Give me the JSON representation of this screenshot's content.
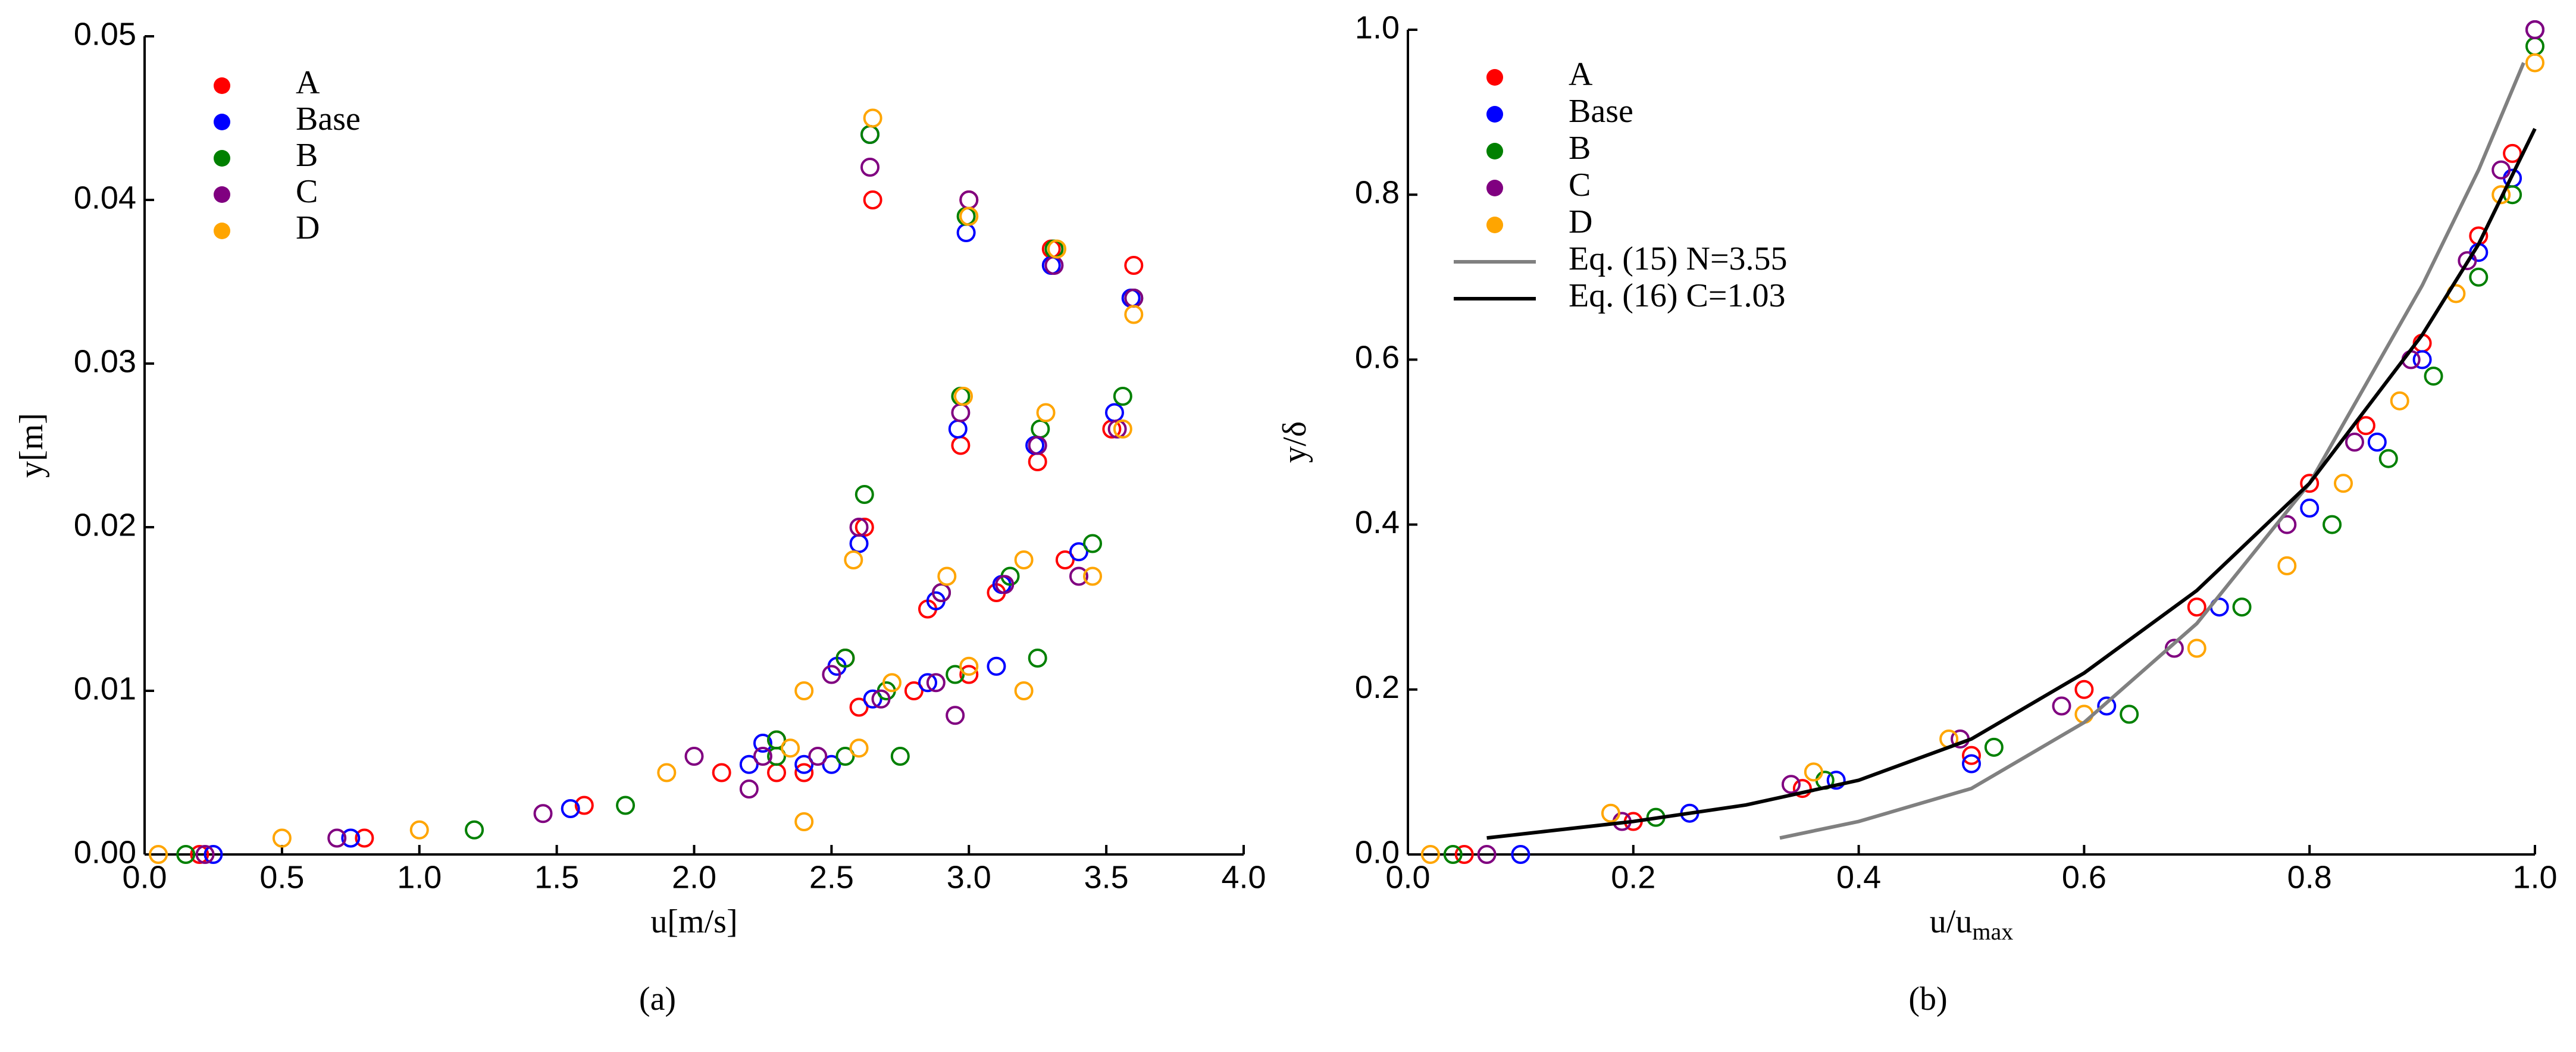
{
  "chart_data": [
    {
      "type": "scatter",
      "label": "(a)",
      "xlabel": "u[m/s]",
      "ylabel": "y[m]",
      "xlim": [
        0,
        4
      ],
      "ylim": [
        0,
        0.05
      ],
      "xticks": [
        {
          "value": 0,
          "label": "0.0"
        },
        {
          "value": 0.5,
          "label": "0.5"
        },
        {
          "value": 1,
          "label": "1.0"
        },
        {
          "value": 1.5,
          "label": "1.5"
        },
        {
          "value": 2,
          "label": "2.0"
        },
        {
          "value": 2.5,
          "label": "2.5"
        },
        {
          "value": 3,
          "label": "3.0"
        },
        {
          "value": 3.5,
          "label": "3.5"
        },
        {
          "value": 4,
          "label": "4.0"
        }
      ],
      "yticks": [
        {
          "value": 0,
          "label": "0.00"
        },
        {
          "value": 0.01,
          "label": "0.01"
        },
        {
          "value": 0.02,
          "label": "0.02"
        },
        {
          "value": 0.03,
          "label": "0.03"
        },
        {
          "value": 0.04,
          "label": "0.04"
        },
        {
          "value": 0.05,
          "label": "0.05"
        }
      ],
      "legend": "upper left",
      "series": [
        {
          "name": "A",
          "color": "#ff0000",
          "x": [
            0.2,
            0.8,
            1.6,
            2.3,
            2.55,
            2.62,
            2.65,
            2.1,
            2.6,
            2.85,
            2.97,
            3.0,
            2.3,
            2.8,
            3.1,
            3.25,
            3.3,
            2.4,
            3.0,
            3.35,
            3.52,
            3.6
          ],
          "values": [
            0,
            0.001,
            0.003,
            0.007,
            0.012,
            0.02,
            0.04,
            0.005,
            0.009,
            0.015,
            0.025,
            0.04,
            0.005,
            0.01,
            0.016,
            0.024,
            0.037,
            0.005,
            0.011,
            0.018,
            0.026,
            0.036
          ]
        },
        {
          "name": "Base",
          "color": "#0000ff",
          "x": [
            0.25,
            0.75,
            1.55,
            2.25,
            2.52,
            2.6,
            2.64,
            2.2,
            2.65,
            2.88,
            2.96,
            2.99,
            2.4,
            2.85,
            3.12,
            3.24,
            3.3,
            2.5,
            3.1,
            3.4,
            3.53,
            3.59
          ],
          "values": [
            0,
            0.001,
            0.0028,
            0.0068,
            0.0115,
            0.019,
            0.044,
            0.0055,
            0.0095,
            0.0155,
            0.026,
            0.038,
            0.0055,
            0.0105,
            0.0165,
            0.025,
            0.036,
            0.0055,
            0.0115,
            0.0185,
            0.027,
            0.034
          ]
        },
        {
          "name": "B",
          "color": "#008000",
          "x": [
            0.15,
            1.2,
            1.75,
            2.3,
            2.55,
            2.62,
            2.64,
            2.3,
            2.7,
            2.9,
            2.97,
            2.99,
            2.55,
            2.95,
            3.15,
            3.26,
            3.31,
            2.75,
            3.25,
            3.45,
            3.56,
            3.6
          ],
          "values": [
            0,
            0.0015,
            0.003,
            0.007,
            0.012,
            0.022,
            0.044,
            0.006,
            0.01,
            0.016,
            0.028,
            0.039,
            0.006,
            0.011,
            0.017,
            0.026,
            0.037,
            0.006,
            0.012,
            0.019,
            0.028,
            0.034
          ]
        },
        {
          "name": "C",
          "color": "#800080",
          "x": [
            0.22,
            0.7,
            1.45,
            2.0,
            2.5,
            2.6,
            2.64,
            2.25,
            2.68,
            2.9,
            2.97,
            3.0,
            2.45,
            2.88,
            3.13,
            3.25,
            3.31,
            2.2,
            2.95,
            3.4,
            3.54,
            3.6
          ],
          "values": [
            0,
            0.001,
            0.0025,
            0.006,
            0.011,
            0.02,
            0.042,
            0.006,
            0.0095,
            0.016,
            0.027,
            0.04,
            0.006,
            0.0105,
            0.0165,
            0.025,
            0.036,
            0.004,
            0.0085,
            0.017,
            0.026,
            0.034
          ]
        },
        {
          "name": "D",
          "color": "#ffa500",
          "x": [
            0.05,
            0.5,
            1.0,
            1.9,
            2.4,
            2.58,
            2.65,
            2.35,
            2.72,
            2.92,
            2.98,
            3.0,
            2.6,
            3.0,
            3.2,
            3.28,
            3.32,
            2.4,
            3.2,
            3.45,
            3.56,
            3.6
          ],
          "values": [
            0,
            0.001,
            0.0015,
            0.005,
            0.01,
            0.018,
            0.045,
            0.0065,
            0.0105,
            0.017,
            0.028,
            0.039,
            0.0065,
            0.0115,
            0.018,
            0.027,
            0.037,
            0.002,
            0.01,
            0.017,
            0.026,
            0.033
          ]
        }
      ]
    },
    {
      "type": "scatter",
      "label": "(b)",
      "xlabel": "u/u",
      "xlabel_sub": "max",
      "ylabel": "y/δ",
      "xlim": [
        0,
        1
      ],
      "ylim": [
        0,
        1
      ],
      "xticks": [
        {
          "value": 0,
          "label": "0.0"
        },
        {
          "value": 0.2,
          "label": "0.2"
        },
        {
          "value": 0.4,
          "label": "0.4"
        },
        {
          "value": 0.6,
          "label": "0.6"
        },
        {
          "value": 0.8,
          "label": "0.8"
        },
        {
          "value": 1,
          "label": "1.0"
        }
      ],
      "yticks": [
        {
          "value": 0,
          "label": "0.0"
        },
        {
          "value": 0.2,
          "label": "0.2"
        },
        {
          "value": 0.4,
          "label": "0.4"
        },
        {
          "value": 0.6,
          "label": "0.6"
        },
        {
          "value": 0.8,
          "label": "0.8"
        },
        {
          "value": 1,
          "label": "1.0"
        }
      ],
      "legend": "upper left",
      "series": [
        {
          "name": "A",
          "color": "#ff0000",
          "x": [
            0.05,
            0.2,
            0.35,
            0.5,
            0.6,
            0.7,
            0.8,
            0.85,
            0.9,
            0.95,
            0.98,
            1.0
          ],
          "values": [
            0,
            0.04,
            0.08,
            0.12,
            0.2,
            0.3,
            0.45,
            0.52,
            0.62,
            0.75,
            0.85,
            1.0
          ]
        },
        {
          "name": "Base",
          "color": "#0000ff",
          "x": [
            0.1,
            0.25,
            0.38,
            0.5,
            0.62,
            0.72,
            0.8,
            0.86,
            0.9,
            0.95,
            0.98,
            1.0
          ],
          "values": [
            0,
            0.05,
            0.09,
            0.11,
            0.18,
            0.3,
            0.42,
            0.5,
            0.6,
            0.73,
            0.82,
            1.0
          ]
        },
        {
          "name": "B",
          "color": "#008000",
          "x": [
            0.04,
            0.22,
            0.37,
            0.52,
            0.64,
            0.74,
            0.82,
            0.87,
            0.91,
            0.95,
            0.98,
            1.0
          ],
          "values": [
            0,
            0.045,
            0.09,
            0.13,
            0.17,
            0.3,
            0.4,
            0.48,
            0.58,
            0.7,
            0.8,
            0.98
          ]
        },
        {
          "name": "C",
          "color": "#800080",
          "x": [
            0.07,
            0.19,
            0.34,
            0.49,
            0.58,
            0.68,
            0.78,
            0.84,
            0.89,
            0.94,
            0.97,
            1.0
          ],
          "values": [
            0,
            0.04,
            0.085,
            0.14,
            0.18,
            0.25,
            0.4,
            0.5,
            0.6,
            0.72,
            0.83,
            1.0
          ]
        },
        {
          "name": "D",
          "color": "#ffa500",
          "x": [
            0.02,
            0.18,
            0.36,
            0.48,
            0.6,
            0.7,
            0.78,
            0.83,
            0.88,
            0.93,
            0.97,
            1.0
          ],
          "values": [
            0,
            0.05,
            0.1,
            0.14,
            0.17,
            0.25,
            0.35,
            0.45,
            0.55,
            0.68,
            0.8,
            0.96
          ]
        },
        {
          "name": "Eq. (15) N=3.55",
          "color": "#808080",
          "kind": "line",
          "x": [
            0.33,
            0.4,
            0.5,
            0.6,
            0.7,
            0.8,
            0.85,
            0.9,
            0.95,
            0.99
          ],
          "values": [
            0.02,
            0.04,
            0.08,
            0.16,
            0.28,
            0.45,
            0.57,
            0.69,
            0.83,
            0.96
          ]
        },
        {
          "name": "Eq. (16) C=1.03",
          "color": "#000000",
          "kind": "line",
          "x": [
            0.07,
            0.2,
            0.3,
            0.4,
            0.5,
            0.6,
            0.7,
            0.8,
            0.9,
            0.95,
            1.0
          ],
          "values": [
            0.02,
            0.04,
            0.06,
            0.09,
            0.14,
            0.22,
            0.32,
            0.45,
            0.63,
            0.74,
            0.88
          ]
        }
      ]
    }
  ]
}
